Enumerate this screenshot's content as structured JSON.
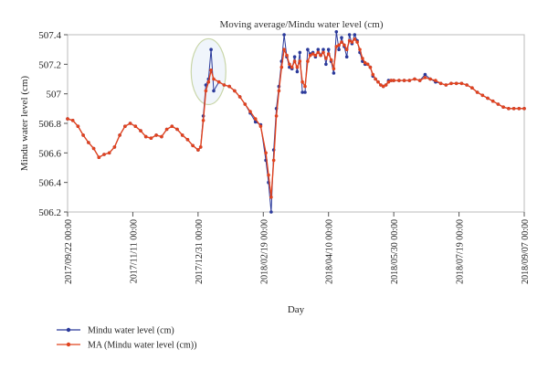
{
  "chart_data": {
    "type": "line",
    "title": "Moving average/Mindu water level (cm)",
    "xlabel": "Day",
    "ylabel": "Mindu water level (cm)",
    "ylim": [
      506.2,
      507.4
    ],
    "yticks": [
      "506.2",
      "506.4",
      "506.6",
      "506.8",
      "507",
      "507.2",
      "507.4"
    ],
    "xticks": [
      "2017/09/22 00:00",
      "2017/11/11 00:00",
      "2017/12/31 00:00",
      "2018/02/19 00:00",
      "2018/04/10 00:00",
      "2018/05/30 00:00",
      "2018/07/19 00:00",
      "2018/09/07 00:00"
    ],
    "xlim": [
      "2017-09-22",
      "2018-09-07"
    ],
    "grid": false,
    "legend_position": "bottom-left",
    "annotation": "ellipse highlighting spike near 2018/01/06",
    "series": [
      {
        "name": "Mindu water level (cm)",
        "color": "#2b3a9b",
        "x": [
          "2017-09-22",
          "2017-09-26",
          "2017-09-30",
          "2017-10-04",
          "2017-10-08",
          "2017-10-12",
          "2017-10-16",
          "2017-10-20",
          "2017-10-24",
          "2017-10-28",
          "2017-11-01",
          "2017-11-05",
          "2017-11-09",
          "2017-11-13",
          "2017-11-17",
          "2017-11-21",
          "2017-11-25",
          "2017-11-29",
          "2017-12-03",
          "2017-12-07",
          "2017-12-11",
          "2017-12-15",
          "2017-12-19",
          "2017-12-23",
          "2017-12-27",
          "2017-12-31",
          "2018-01-02",
          "2018-01-04",
          "2018-01-06",
          "2018-01-08",
          "2018-01-10",
          "2018-01-12",
          "2018-01-16",
          "2018-01-20",
          "2018-01-24",
          "2018-01-28",
          "2018-02-01",
          "2018-02-05",
          "2018-02-09",
          "2018-02-13",
          "2018-02-17",
          "2018-02-21",
          "2018-02-23",
          "2018-02-25",
          "2018-02-27",
          "2018-03-01",
          "2018-03-03",
          "2018-03-05",
          "2018-03-07",
          "2018-03-09",
          "2018-03-11",
          "2018-03-13",
          "2018-03-15",
          "2018-03-17",
          "2018-03-19",
          "2018-03-21",
          "2018-03-23",
          "2018-03-25",
          "2018-03-27",
          "2018-03-29",
          "2018-03-31",
          "2018-04-02",
          "2018-04-04",
          "2018-04-06",
          "2018-04-08",
          "2018-04-10",
          "2018-04-12",
          "2018-04-14",
          "2018-04-16",
          "2018-04-18",
          "2018-04-20",
          "2018-04-22",
          "2018-04-24",
          "2018-04-26",
          "2018-04-28",
          "2018-04-30",
          "2018-05-02",
          "2018-05-04",
          "2018-05-06",
          "2018-05-08",
          "2018-05-10",
          "2018-05-12",
          "2018-05-14",
          "2018-05-16",
          "2018-05-18",
          "2018-05-20",
          "2018-05-22",
          "2018-05-24",
          "2018-05-26",
          "2018-05-28",
          "2018-05-30",
          "2018-06-03",
          "2018-06-07",
          "2018-06-11",
          "2018-06-15",
          "2018-06-19",
          "2018-06-23",
          "2018-06-27",
          "2018-07-01",
          "2018-07-05",
          "2018-07-09",
          "2018-07-13",
          "2018-07-17",
          "2018-07-21",
          "2018-07-25",
          "2018-07-29",
          "2018-08-02",
          "2018-08-06",
          "2018-08-10",
          "2018-08-14",
          "2018-08-18",
          "2018-08-22",
          "2018-08-26",
          "2018-08-30",
          "2018-09-03",
          "2018-09-07"
        ],
        "values": [
          506.83,
          506.82,
          506.78,
          506.72,
          506.67,
          506.63,
          506.57,
          506.59,
          506.6,
          506.64,
          506.72,
          506.78,
          506.8,
          506.78,
          506.75,
          506.71,
          506.7,
          506.72,
          506.71,
          506.76,
          506.78,
          506.76,
          506.72,
          506.69,
          506.65,
          506.62,
          506.64,
          506.85,
          507.06,
          507.1,
          507.3,
          507.02,
          507.08,
          507.06,
          507.05,
          507.02,
          506.98,
          506.93,
          506.87,
          506.81,
          506.79,
          506.55,
          506.4,
          506.2,
          506.62,
          506.9,
          507.05,
          507.22,
          507.4,
          507.25,
          507.18,
          507.17,
          507.25,
          507.15,
          507.28,
          507.01,
          507.01,
          507.3,
          507.27,
          507.28,
          507.25,
          507.3,
          507.26,
          507.3,
          507.2,
          507.3,
          507.22,
          507.14,
          507.42,
          507.3,
          507.38,
          507.32,
          507.25,
          507.4,
          507.34,
          507.4,
          507.36,
          507.28,
          507.22,
          507.2,
          507.2,
          507.18,
          507.12,
          507.1,
          507.08,
          507.06,
          507.05,
          507.06,
          507.09,
          507.09,
          507.09,
          507.09,
          507.09,
          507.09,
          507.1,
          507.09,
          507.13,
          507.1,
          507.08,
          507.07,
          507.06,
          507.07,
          507.07,
          507.07,
          507.06,
          507.04,
          507.01,
          506.99,
          506.97,
          506.95,
          506.93,
          506.91,
          506.9,
          506.9,
          506.9,
          506.9
        ]
      },
      {
        "name": "MA (Mindu water level (cm))",
        "color": "#e0431f",
        "x": [
          "2017-09-22",
          "2017-09-26",
          "2017-09-30",
          "2017-10-04",
          "2017-10-08",
          "2017-10-12",
          "2017-10-16",
          "2017-10-20",
          "2017-10-24",
          "2017-10-28",
          "2017-11-01",
          "2017-11-05",
          "2017-11-09",
          "2017-11-13",
          "2017-11-17",
          "2017-11-21",
          "2017-11-25",
          "2017-11-29",
          "2017-12-03",
          "2017-12-07",
          "2017-12-11",
          "2017-12-15",
          "2017-12-19",
          "2017-12-23",
          "2017-12-27",
          "2017-12-31",
          "2018-01-02",
          "2018-01-04",
          "2018-01-06",
          "2018-01-08",
          "2018-01-10",
          "2018-01-12",
          "2018-01-16",
          "2018-01-20",
          "2018-01-24",
          "2018-01-28",
          "2018-02-01",
          "2018-02-05",
          "2018-02-09",
          "2018-02-13",
          "2018-02-17",
          "2018-02-21",
          "2018-02-23",
          "2018-02-25",
          "2018-02-27",
          "2018-03-01",
          "2018-03-03",
          "2018-03-05",
          "2018-03-07",
          "2018-03-09",
          "2018-03-11",
          "2018-03-13",
          "2018-03-15",
          "2018-03-17",
          "2018-03-19",
          "2018-03-21",
          "2018-03-23",
          "2018-03-25",
          "2018-03-27",
          "2018-03-29",
          "2018-03-31",
          "2018-04-02",
          "2018-04-04",
          "2018-04-06",
          "2018-04-08",
          "2018-04-10",
          "2018-04-12",
          "2018-04-14",
          "2018-04-16",
          "2018-04-18",
          "2018-04-20",
          "2018-04-22",
          "2018-04-24",
          "2018-04-26",
          "2018-04-28",
          "2018-04-30",
          "2018-05-02",
          "2018-05-04",
          "2018-05-06",
          "2018-05-08",
          "2018-05-10",
          "2018-05-12",
          "2018-05-14",
          "2018-05-16",
          "2018-05-18",
          "2018-05-20",
          "2018-05-22",
          "2018-05-24",
          "2018-05-26",
          "2018-05-28",
          "2018-05-30",
          "2018-06-03",
          "2018-06-07",
          "2018-06-11",
          "2018-06-15",
          "2018-06-19",
          "2018-06-23",
          "2018-06-27",
          "2018-07-01",
          "2018-07-05",
          "2018-07-09",
          "2018-07-13",
          "2018-07-17",
          "2018-07-21",
          "2018-07-25",
          "2018-07-29",
          "2018-08-02",
          "2018-08-06",
          "2018-08-10",
          "2018-08-14",
          "2018-08-18",
          "2018-08-22",
          "2018-08-26",
          "2018-08-30",
          "2018-09-03",
          "2018-09-07"
        ],
        "values": [
          506.83,
          506.82,
          506.78,
          506.72,
          506.67,
          506.63,
          506.57,
          506.59,
          506.6,
          506.64,
          506.72,
          506.78,
          506.8,
          506.78,
          506.75,
          506.71,
          506.7,
          506.72,
          506.71,
          506.76,
          506.78,
          506.76,
          506.72,
          506.69,
          506.65,
          506.62,
          506.64,
          506.82,
          507.02,
          507.08,
          507.16,
          507.1,
          507.08,
          507.06,
          507.05,
          507.02,
          506.98,
          506.93,
          506.88,
          506.83,
          506.78,
          506.6,
          506.45,
          506.3,
          506.55,
          506.85,
          507.02,
          507.18,
          507.3,
          507.26,
          507.2,
          507.18,
          507.22,
          507.18,
          507.22,
          507.08,
          507.05,
          507.22,
          507.26,
          507.27,
          507.26,
          507.28,
          507.26,
          507.28,
          507.24,
          507.27,
          507.23,
          507.17,
          507.32,
          507.33,
          507.35,
          507.33,
          507.3,
          507.36,
          507.35,
          507.37,
          507.35,
          507.3,
          507.24,
          507.21,
          507.2,
          507.18,
          507.13,
          507.1,
          507.08,
          507.06,
          507.05,
          507.06,
          507.08,
          507.09,
          507.09,
          507.09,
          507.09,
          507.09,
          507.1,
          507.09,
          507.11,
          507.1,
          507.09,
          507.07,
          507.06,
          507.07,
          507.07,
          507.07,
          507.06,
          507.04,
          507.01,
          506.99,
          506.97,
          506.95,
          506.93,
          506.91,
          506.9,
          506.9,
          506.9,
          506.9
        ]
      }
    ]
  }
}
